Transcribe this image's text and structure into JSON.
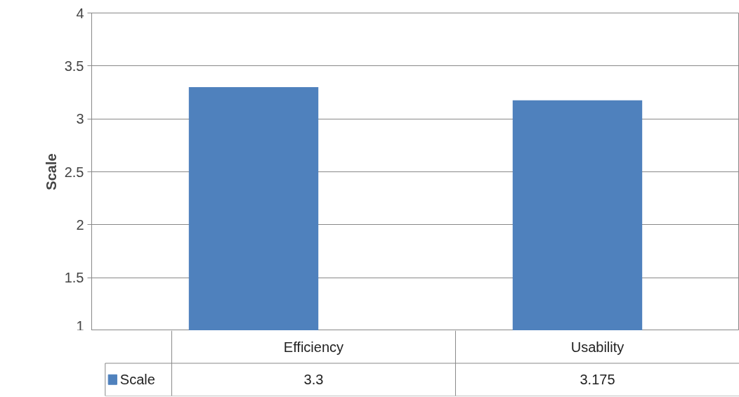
{
  "chart_data": {
    "type": "bar",
    "ylabel": "Scale",
    "categories": [
      "Efficiency",
      "Usability"
    ],
    "series": [
      {
        "name": "Scale",
        "color": "#4f81bd",
        "values": [
          3.3,
          3.175
        ]
      }
    ],
    "ylim": [
      1,
      4
    ],
    "yticks": [
      1,
      1.5,
      2,
      2.5,
      3,
      3.5,
      4
    ],
    "grid": "y",
    "data_labels": true
  }
}
